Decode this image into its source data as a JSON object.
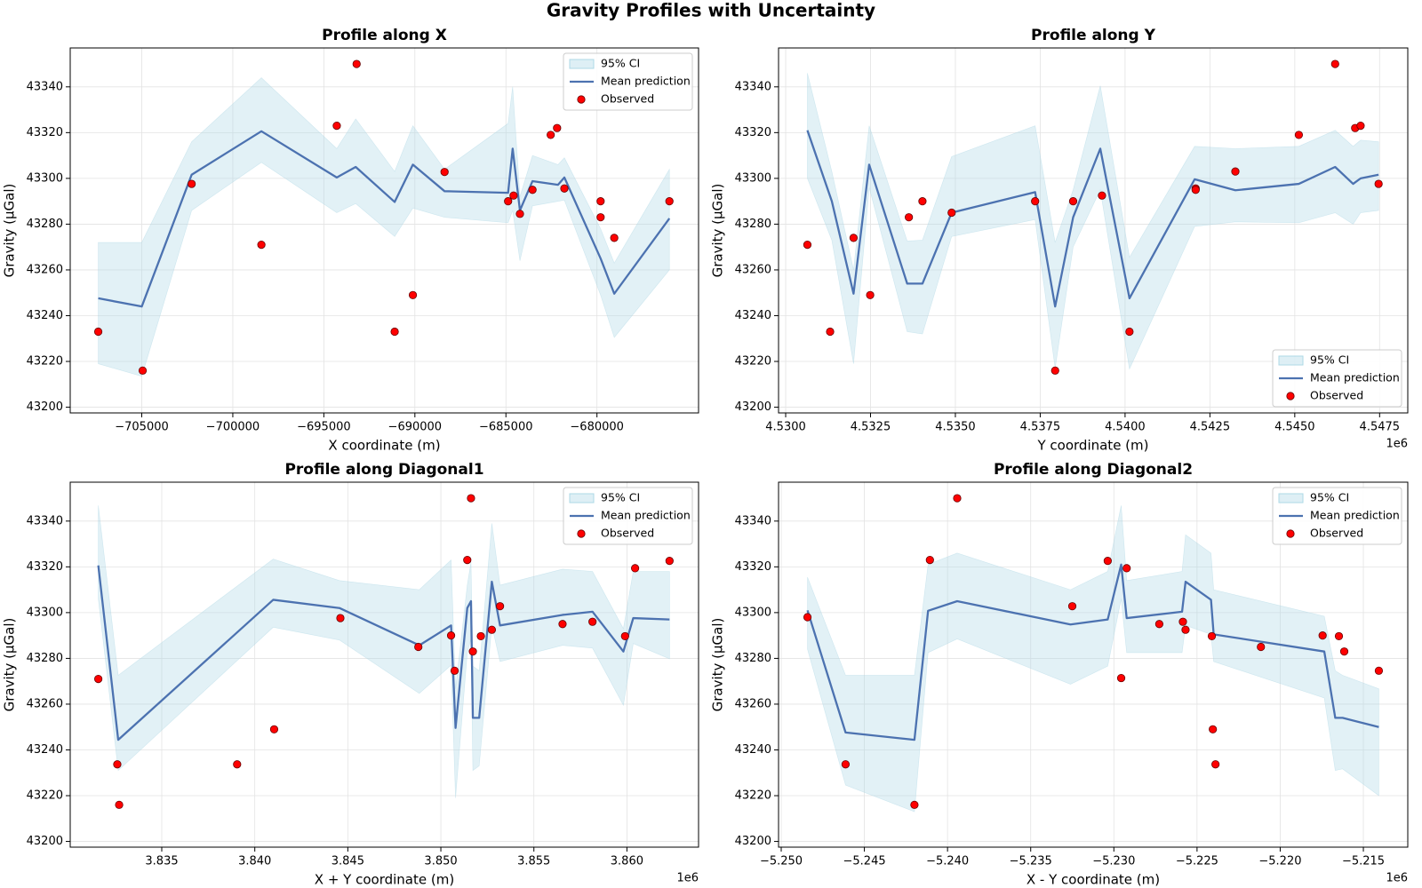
{
  "title": "Gravity Profiles with Uncertainty",
  "chart_data": [
    {
      "type": "line",
      "title": "Profile along X",
      "x_label": "X coordinate (m)",
      "y_label": "Gravity (µGal)",
      "legend": "upper right",
      "grid": true,
      "xlim": [
        -708930,
        -674420
      ],
      "ylim": [
        43197.5,
        43357
      ],
      "xticks": [
        {
          "value": -705000,
          "label": "−705000"
        },
        {
          "value": -700000,
          "label": "−700000"
        },
        {
          "value": -695000,
          "label": "−695000"
        },
        {
          "value": -690000,
          "label": "−690000"
        },
        {
          "value": -685000,
          "label": "−685000"
        },
        {
          "value": -680000,
          "label": "−680000"
        }
      ],
      "yticks": [
        43200,
        43220,
        43240,
        43260,
        43280,
        43300,
        43320,
        43340
      ],
      "x": [
        -707390,
        -705000,
        -702260,
        -698430,
        -694290,
        -693250,
        -691110,
        -690110,
        -688370,
        -684880,
        -684630,
        -684230,
        -683540,
        -682140,
        -681790,
        -679800,
        -679050,
        -676020
      ],
      "series": [
        {
          "name": "95% CI",
          "kind": "band",
          "color": "#add8e6",
          "lower": [
            43219,
            43213.5,
            43286,
            43307,
            43285,
            43289,
            43274.6,
            43287,
            43283,
            43280.6,
            43286,
            43264,
            43288,
            43290,
            43290.5,
            43249,
            43230.5,
            43260
          ],
          "upper": [
            43272,
            43272,
            43316,
            43344,
            43313,
            43326,
            43303,
            43323,
            43304,
            43324,
            43340,
            43292,
            43310,
            43306,
            43309,
            43278,
            43263,
            43304
          ]
        },
        {
          "name": "Mean prediction",
          "kind": "line",
          "color": "#4c72b0",
          "values": [
            43247.6,
            43244,
            43301.6,
            43320.6,
            43300.4,
            43305,
            43289.7,
            43306,
            43294.4,
            43293.7,
            43313,
            43286,
            43298.8,
            43297.2,
            43300.4,
            43265,
            43249.6,
            43282.5
          ]
        },
        {
          "name": "Observed",
          "kind": "scatter",
          "color": "#ff0000",
          "x": [
            -707390,
            -704950,
            -702260,
            -698430,
            -694290,
            -693200,
            -691110,
            -690110,
            -688370,
            -684880,
            -684580,
            -684230,
            -683540,
            -682540,
            -682190,
            -681790,
            -679800,
            -679800,
            -679050,
            -676020
          ],
          "values": [
            43233,
            43216,
            43297.6,
            43271,
            43323,
            43350,
            43233,
            43249,
            43302.8,
            43290,
            43292.5,
            43284.5,
            43295,
            43319,
            43322,
            43295.6,
            43290,
            43283,
            43274,
            43290
          ]
        }
      ]
    },
    {
      "type": "line",
      "title": "Profile along Y",
      "x_label": "Y coordinate (m)",
      "y_label": "Gravity (µGal)",
      "x_offset_label": "1e6",
      "legend": "lower right",
      "grid": true,
      "xlim": [
        4529790,
        4548330
      ],
      "ylim": [
        43197.5,
        43357
      ],
      "xticks": [
        {
          "value": 4530000,
          "label": "4.5300"
        },
        {
          "value": 4532500,
          "label": "4.5325"
        },
        {
          "value": 4535000,
          "label": "4.5350"
        },
        {
          "value": 4537500,
          "label": "4.5375"
        },
        {
          "value": 4540000,
          "label": "4.5400"
        },
        {
          "value": 4542500,
          "label": "4.5425"
        },
        {
          "value": 4545000,
          "label": "4.5450"
        },
        {
          "value": 4547500,
          "label": "4.5475"
        }
      ],
      "yticks": [
        43200,
        43220,
        43240,
        43260,
        43280,
        43300,
        43320,
        43340
      ],
      "x": [
        4530640,
        4531360,
        4532000,
        4532460,
        4533580,
        4534030,
        4534890,
        4537350,
        4537940,
        4538470,
        4539270,
        4540130,
        4542050,
        4543250,
        4545120,
        4546190,
        4546720,
        4546940,
        4547470
      ],
      "series": [
        {
          "name": "95% CI",
          "kind": "band",
          "color": "#add8e6",
          "lower": [
            43300,
            43273,
            43219,
            43296,
            43233,
            43232,
            43274.6,
            43282,
            43217,
            43270,
            43295,
            43216.7,
            43279,
            43281,
            43280.6,
            43285,
            43280,
            43285,
            43286
          ],
          "upper": [
            43346,
            43303,
            43260,
            43323,
            43272.6,
            43273,
            43309.5,
            43323,
            43272,
            43295,
            43340.5,
            43265.5,
            43314,
            43313,
            43314,
            43321,
            43314,
            43316.7,
            43316
          ]
        },
        {
          "name": "Mean prediction",
          "kind": "line",
          "color": "#4c72b0",
          "values": [
            43321,
            43290,
            43249.6,
            43306,
            43254,
            43254,
            43285,
            43294,
            43244,
            43283,
            43313,
            43247.6,
            43299.6,
            43294.8,
            43297.6,
            43305,
            43297.6,
            43300,
            43301.6
          ]
        },
        {
          "name": "Observed",
          "kind": "scatter",
          "color": "#ff0000",
          "x": [
            4530640,
            4531310,
            4532000,
            4532490,
            4533630,
            4534030,
            4534890,
            4537350,
            4537940,
            4538470,
            4539320,
            4540130,
            4542080,
            4542080,
            4543250,
            4545120,
            4546190,
            4546780,
            4546940,
            4547470
          ],
          "values": [
            43271,
            43233,
            43274,
            43249,
            43283,
            43290,
            43285,
            43290,
            43216,
            43290,
            43292.5,
            43233,
            43295.6,
            43295,
            43303,
            43319,
            43350,
            43322,
            43323,
            43297.6
          ]
        }
      ]
    },
    {
      "type": "line",
      "title": "Profile along Diagonal1",
      "x_label": "X + Y coordinate (m)",
      "y_label": "Gravity (µGal)",
      "x_offset_label": "1e6",
      "legend": "upper right",
      "grid": true,
      "xlim": [
        3830080,
        3863850
      ],
      "ylim": [
        43197.5,
        43357
      ],
      "xticks": [
        {
          "value": 3835000,
          "label": "3.835"
        },
        {
          "value": 3840000,
          "label": "3.840"
        },
        {
          "value": 3845000,
          "label": "3.845"
        },
        {
          "value": 3850000,
          "label": "3.850"
        },
        {
          "value": 3855000,
          "label": "3.855"
        },
        {
          "value": 3860000,
          "label": "3.860"
        }
      ],
      "yticks": [
        43200,
        43220,
        43240,
        43260,
        43280,
        43300,
        43320,
        43340
      ],
      "x": [
        3831590,
        3832660,
        3840990,
        3844550,
        3848840,
        3850550,
        3850790,
        3851420,
        3851620,
        3851720,
        3852060,
        3852740,
        3853180,
        3856540,
        3858150,
        3859810,
        3860340,
        3862290
      ],
      "series": [
        {
          "name": "95% CI",
          "kind": "band",
          "color": "#add8e6",
          "lower": [
            43306,
            43231,
            43293.6,
            43288,
            43264.7,
            43277,
            43219,
            43282.5,
            43288.5,
            43231,
            43233,
            43294.4,
            43278.6,
            43285.7,
            43284.5,
            43259.5,
            43286.5,
            43279.8
          ],
          "upper": [
            43346.8,
            43272.6,
            43323.4,
            43314,
            43310,
            43323,
            43266.7,
            43312,
            43322,
            43276.6,
            43274.6,
            43339,
            43312,
            43319,
            43318,
            43293,
            43318,
            43318
          ]
        },
        {
          "name": "Mean prediction",
          "kind": "line",
          "color": "#4c72b0",
          "values": [
            43320.6,
            43244.4,
            43305.6,
            43302,
            43285.7,
            43294.4,
            43249.6,
            43302,
            43305,
            43254,
            43254,
            43313.5,
            43294.4,
            43299,
            43300.4,
            43283,
            43297.6,
            43297
          ]
        },
        {
          "name": "Observed",
          "kind": "scatter",
          "color": "#ff0000",
          "x": [
            3831590,
            3832610,
            3832710,
            3839050,
            3841040,
            3844600,
            3848790,
            3850550,
            3850740,
            3851420,
            3851620,
            3851720,
            3852150,
            3852740,
            3853180,
            3856540,
            3858150,
            3859900,
            3860440,
            3862290
          ],
          "values": [
            43271,
            43233.7,
            43216,
            43233.7,
            43249,
            43297.6,
            43285,
            43290,
            43274.6,
            43323,
            43350,
            43283,
            43289.7,
            43292.5,
            43302.8,
            43295,
            43296,
            43289.7,
            43319.4,
            43322.6
          ]
        }
      ]
    },
    {
      "type": "line",
      "title": "Profile along Diagonal2",
      "x_label": "X - Y coordinate (m)",
      "y_label": "Gravity (µGal)",
      "x_offset_label": "1e6",
      "legend": "upper right",
      "grid": true,
      "xlim": [
        -5250160,
        -5212330
      ],
      "ylim": [
        43197.5,
        43357
      ],
      "xticks": [
        {
          "value": -5250000,
          "label": "−5.250"
        },
        {
          "value": -5245000,
          "label": "−5.245"
        },
        {
          "value": -5240000,
          "label": "−5.240"
        },
        {
          "value": -5235000,
          "label": "−5.235"
        },
        {
          "value": -5230000,
          "label": "−5.230"
        },
        {
          "value": -5225000,
          "label": "−5.225"
        },
        {
          "value": -5220000,
          "label": "−5.220"
        },
        {
          "value": -5215000,
          "label": "−5.215"
        }
      ],
      "yticks": [
        43200,
        43220,
        43240,
        43260,
        43280,
        43300,
        43320,
        43340
      ],
      "x": [
        -5248420,
        -5246130,
        -5241990,
        -5241170,
        -5239420,
        -5232610,
        -5230370,
        -5229560,
        -5229230,
        -5225900,
        -5225690,
        -5224160,
        -5224000,
        -5217350,
        -5216690,
        -5216250,
        -5214070
      ],
      "series": [
        {
          "name": "95% CI",
          "kind": "band",
          "color": "#add8e6",
          "lower": [
            43284,
            43224.6,
            43213,
            43282.5,
            43288.5,
            43268.7,
            43276.6,
            43306,
            43282.5,
            43282.5,
            43294.4,
            43290.5,
            43278.6,
            43262.7,
            43231,
            43231.7,
            43220
          ],
          "upper": [
            43315.5,
            43272.6,
            43272.6,
            43321,
            43326,
            43310,
            43318,
            43346.8,
            43314,
            43318,
            43334,
            43326,
            43310,
            43298.4,
            43274.6,
            43272.6,
            43266.7
          ]
        },
        {
          "name": "Mean prediction",
          "kind": "line",
          "color": "#4c72b0",
          "values": [
            43301,
            43247.6,
            43244.4,
            43300.8,
            43305,
            43294.8,
            43297,
            43321,
            43297.6,
            43300.4,
            43313.5,
            43305.6,
            43290.5,
            43283,
            43254,
            43254,
            43250
          ]
        },
        {
          "name": "Observed",
          "kind": "scatter",
          "color": "#ff0000",
          "x": [
            -5248420,
            -5246130,
            -5241990,
            -5241060,
            -5239420,
            -5232500,
            -5230370,
            -5229560,
            -5229230,
            -5227270,
            -5225850,
            -5225690,
            -5224110,
            -5224050,
            -5223890,
            -5221160,
            -5217450,
            -5216470,
            -5216150,
            -5214070
          ],
          "values": [
            43298,
            43233.7,
            43216,
            43323,
            43350,
            43302.8,
            43322.6,
            43271.4,
            43319.4,
            43295,
            43296,
            43292.5,
            43289.7,
            43249,
            43233.7,
            43285,
            43290,
            43289.7,
            43283,
            43274.6
          ]
        }
      ]
    }
  ]
}
